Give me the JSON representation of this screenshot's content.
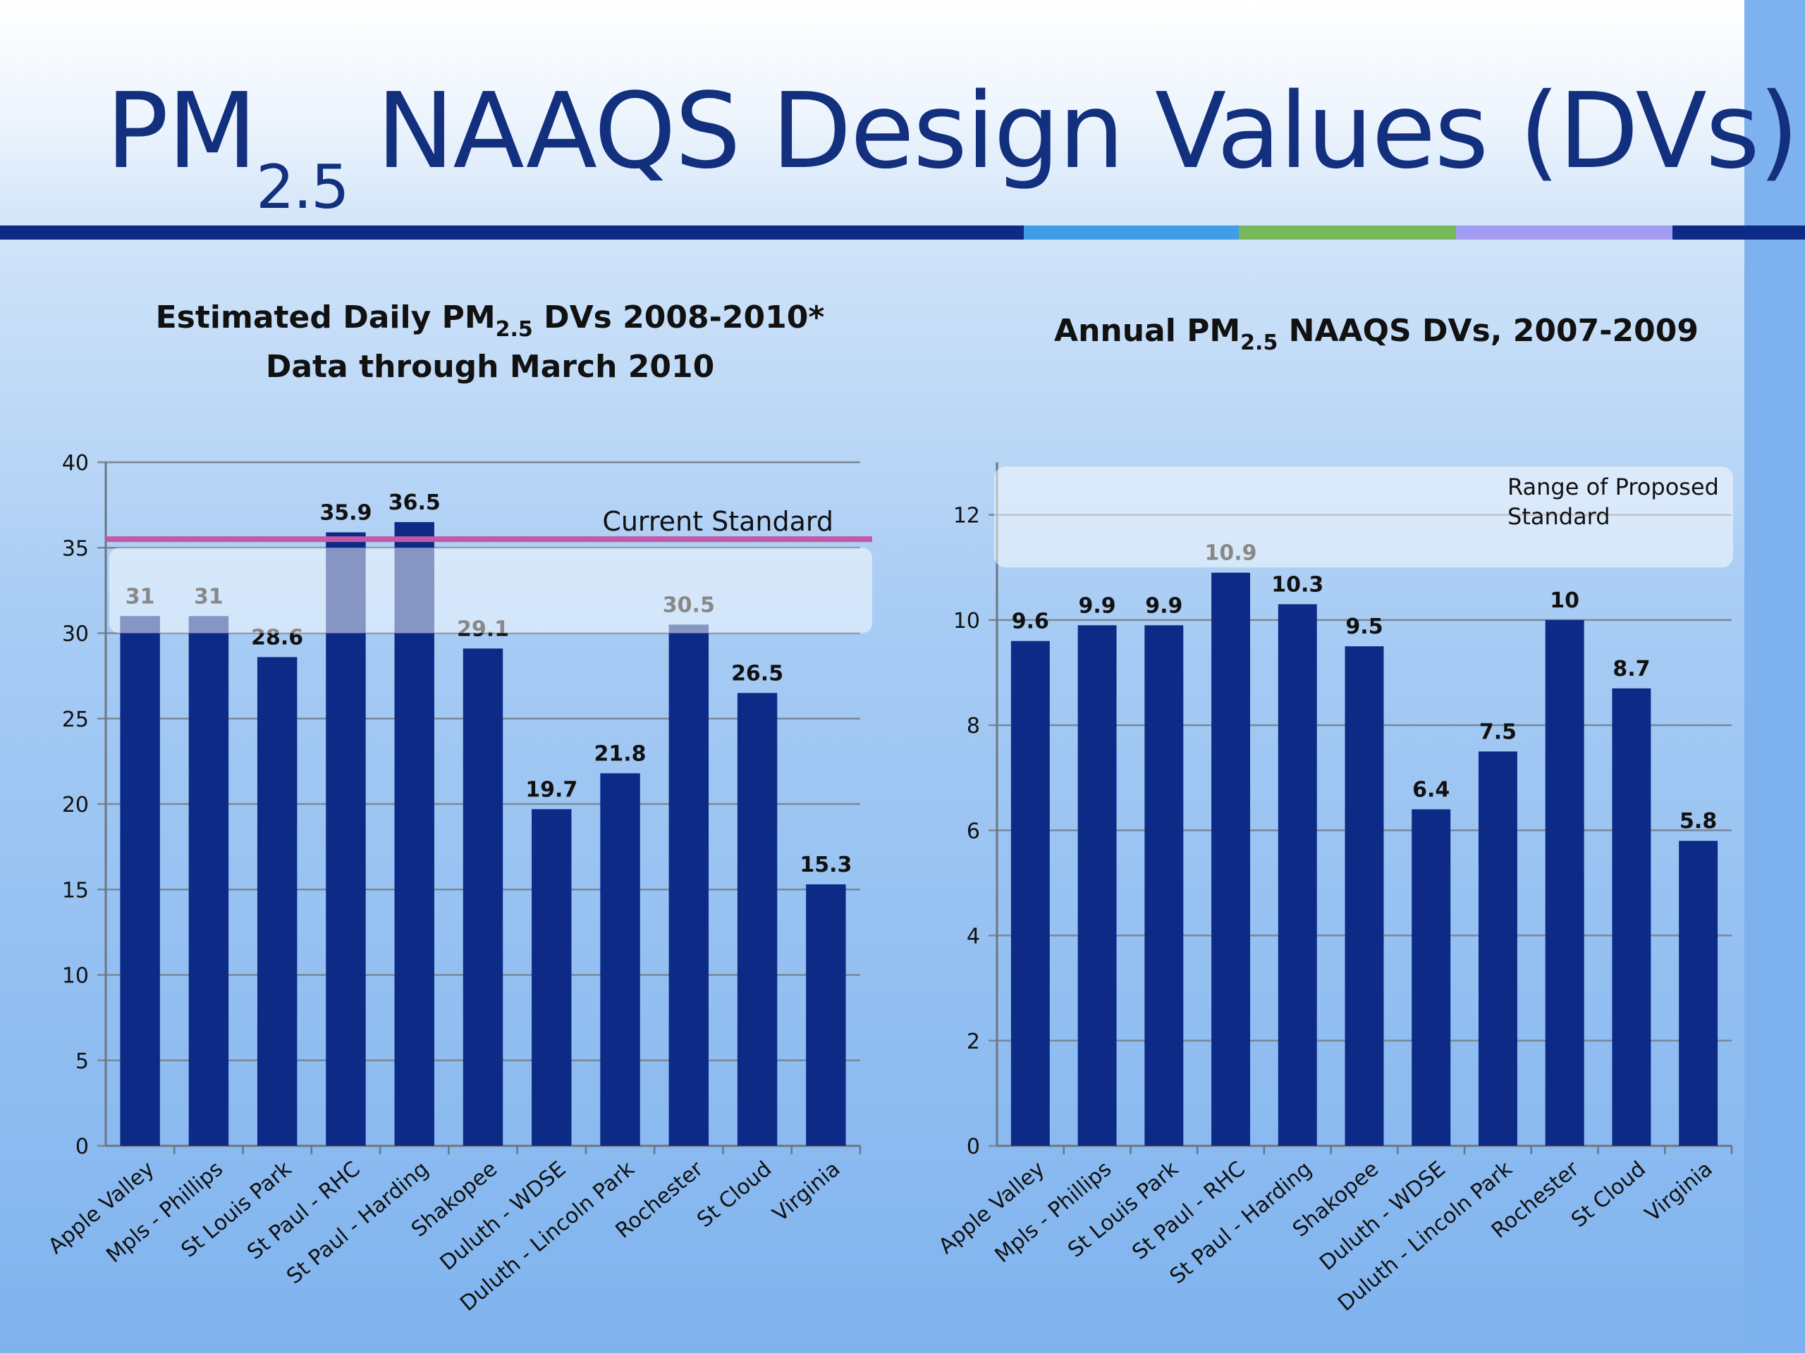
{
  "slide": {
    "title_main": "PM",
    "title_sub": "2.5",
    "title_rest": "NAAQS Design Values (DVs)",
    "colors": {
      "title": "#13307f",
      "bar": "#0c2a86",
      "strip": [
        "#0c2a86",
        "#3e9de6",
        "#76b85a",
        "#a29df2",
        "#0c2a86"
      ]
    }
  },
  "chart_data": [
    {
      "type": "bar",
      "title_line1_a": "Estimated Daily PM",
      "title_line1_sub": "2.5",
      "title_line1_b": " DVs 2008-2010*",
      "title_line2": "Data through March 2010",
      "categories": [
        "Apple Valley",
        "Mpls - Phillips",
        "St Louis Park",
        "St Paul - RHC",
        "St Paul - Harding",
        "Shakopee",
        "Duluth - WDSE",
        "Duluth - Lincoln Park",
        "Rochester",
        "St Cloud",
        "Virginia"
      ],
      "values": [
        31,
        31,
        28.6,
        35.9,
        36.5,
        29.1,
        19.7,
        21.8,
        30.5,
        26.5,
        15.3
      ],
      "labels": [
        "31",
        "31",
        "28.6",
        "35.9",
        "36.5",
        "29.1",
        "19.7",
        "21.8",
        "30.5",
        "26.5",
        "15.3"
      ],
      "ylim": [
        0,
        40
      ],
      "yticks": [
        "0",
        "5",
        "10",
        "15",
        "20",
        "25",
        "30",
        "35",
        "40"
      ],
      "grid": true,
      "reference_line": {
        "label": "Current Standard",
        "value": 35.5,
        "color": "#c458a6"
      },
      "proposed_range": [
        30,
        35
      ]
    },
    {
      "type": "bar",
      "title_a": "Annual PM",
      "title_sub": "2.5",
      "title_b": " NAAQS DVs, 2007-2009",
      "categories": [
        "Apple Valley",
        "Mpls - Phillips",
        "St Louis Park",
        "St Paul - RHC",
        "St Paul - Harding",
        "Shakopee",
        "Duluth - WDSE",
        "Duluth - Lincoln Park",
        "Rochester",
        "St Cloud",
        "Virginia"
      ],
      "values": [
        9.6,
        9.9,
        9.9,
        10.9,
        10.3,
        9.5,
        6.4,
        7.5,
        10,
        8.7,
        5.8
      ],
      "labels": [
        "9.6",
        "9.9",
        "9.9",
        "10.9",
        "10.3",
        "9.5",
        "6.4",
        "7.5",
        "10",
        "8.7",
        "5.8"
      ],
      "ylim": [
        0,
        13
      ],
      "yticks": [
        "0",
        "2",
        "4",
        "6",
        "8",
        "10",
        "12"
      ],
      "grid": true,
      "proposed_range": {
        "label_line1": "Range of Proposed",
        "label_line2": "Standard",
        "from": 11,
        "to": 13
      }
    }
  ]
}
